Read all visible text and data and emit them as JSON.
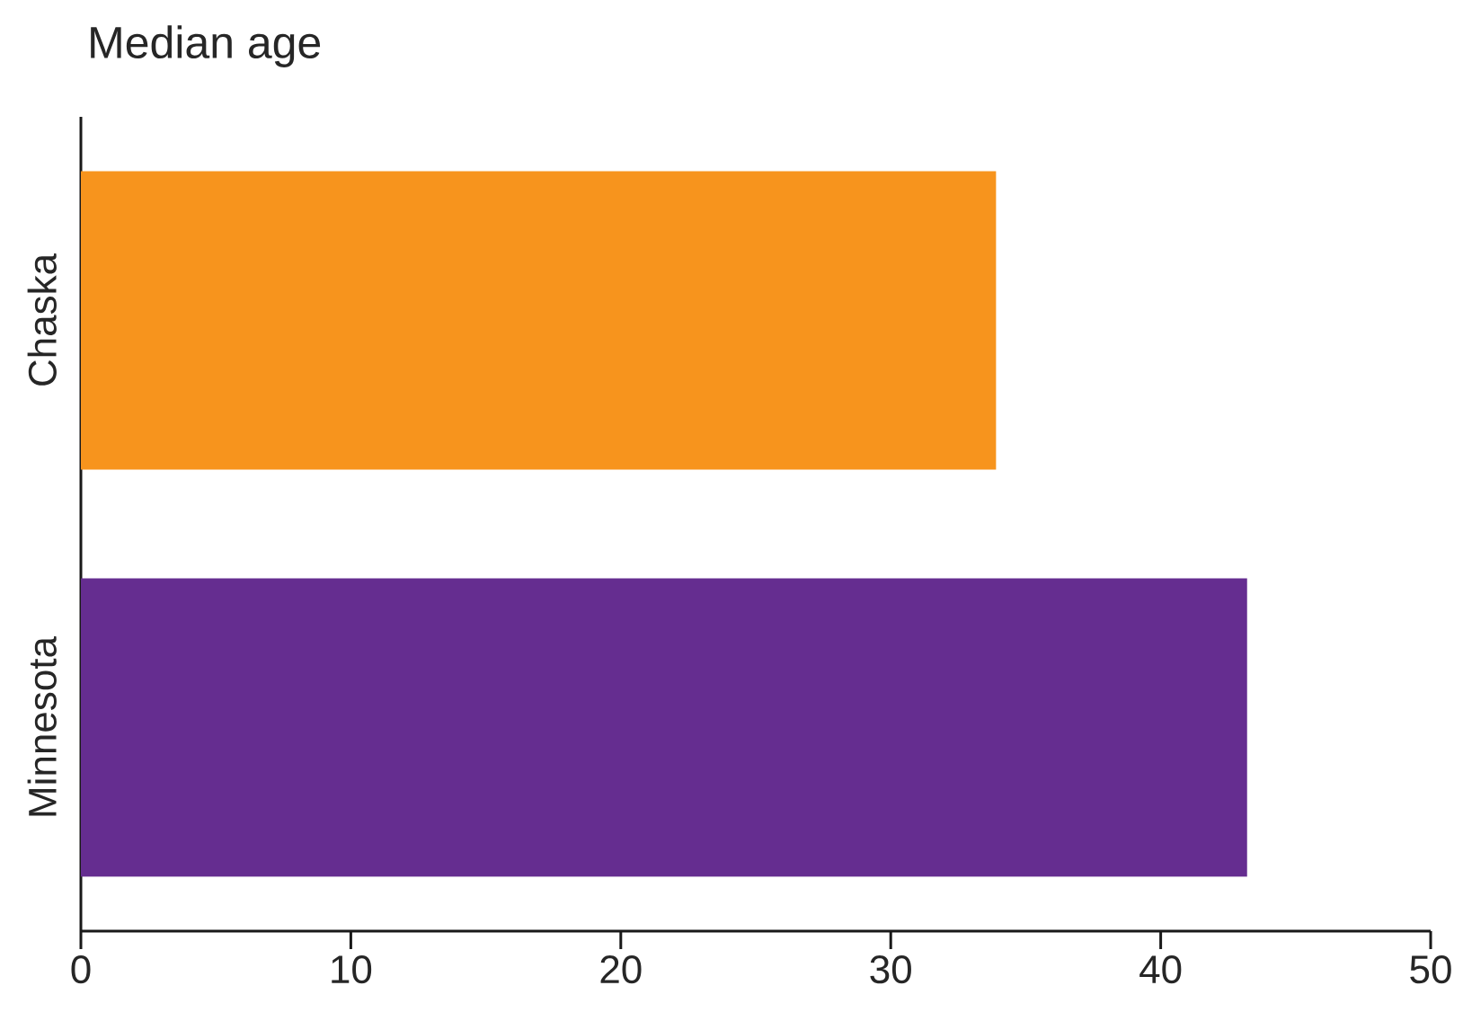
{
  "chart_data": {
    "type": "bar",
    "orientation": "horizontal",
    "title": "Median age",
    "categories": [
      "Chaska",
      "Minnesota"
    ],
    "values": [
      33.9,
      43.2
    ],
    "colors": [
      "#f7941d",
      "#652d90"
    ],
    "xlim": [
      0,
      50
    ],
    "xticks": [
      0,
      10,
      20,
      30,
      40,
      50
    ],
    "grid": false
  }
}
